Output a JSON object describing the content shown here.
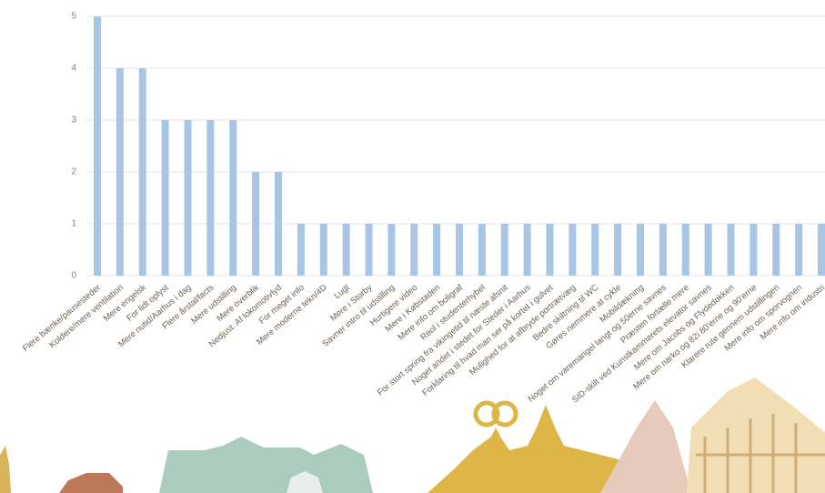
{
  "chart_data": {
    "type": "bar",
    "categories": [
      "Flere bænke/pausesteder",
      "Koldere/mere ventilation",
      "Mere engelsk",
      "For lidt oplyst",
      "Mere nutid/Aarhus i dag",
      "Flere årstal/facts",
      "Mere udstilling",
      "Mere overblik",
      "Nedjust. Af lokomotivlyd",
      "For meget info",
      "Mere moderne tekn/4D",
      "Lugt",
      "Mere i Storby",
      "Savner intro til udstilling",
      "Hurtigere video",
      "Mere i Købstaden",
      "Mere info om boligraf",
      "Reol i studenterhybel",
      "For stort spring fra vikingetid til næste afsnit",
      "Noget andet i stedet for Steder i Aarhus",
      "Forklaring til hvad man ser på kortet i gulvet",
      "Mulighed for at afbryde portrætvæg",
      "Bedre skiltning til WC",
      "Gøres nemmere at cykle",
      "Mobildækning",
      "Noget om varemangel langt og 50erne savnes",
      "Præsten fortælle mere",
      "SID-skilt ved Kunstkammerets elevator savnes",
      "Mere om Jacobs og Flydedokken",
      "Mere om narko og 82i 80'erne og 90'erne",
      "Klarere rute gennem udstillingen",
      "Mere info om sporvognen",
      "Mere info om industri"
    ],
    "values": [
      5,
      4,
      4,
      3,
      3,
      3,
      3,
      2,
      2,
      1,
      1,
      1,
      1,
      1,
      1,
      1,
      1,
      1,
      1,
      1,
      1,
      1,
      1,
      1,
      1,
      1,
      1,
      1,
      1,
      1,
      1,
      1,
      1
    ],
    "color": "#a8c6e4",
    "ylim": [
      0,
      5
    ],
    "yticks": [
      0,
      1,
      2,
      3,
      4,
      5
    ],
    "grid": true
  }
}
